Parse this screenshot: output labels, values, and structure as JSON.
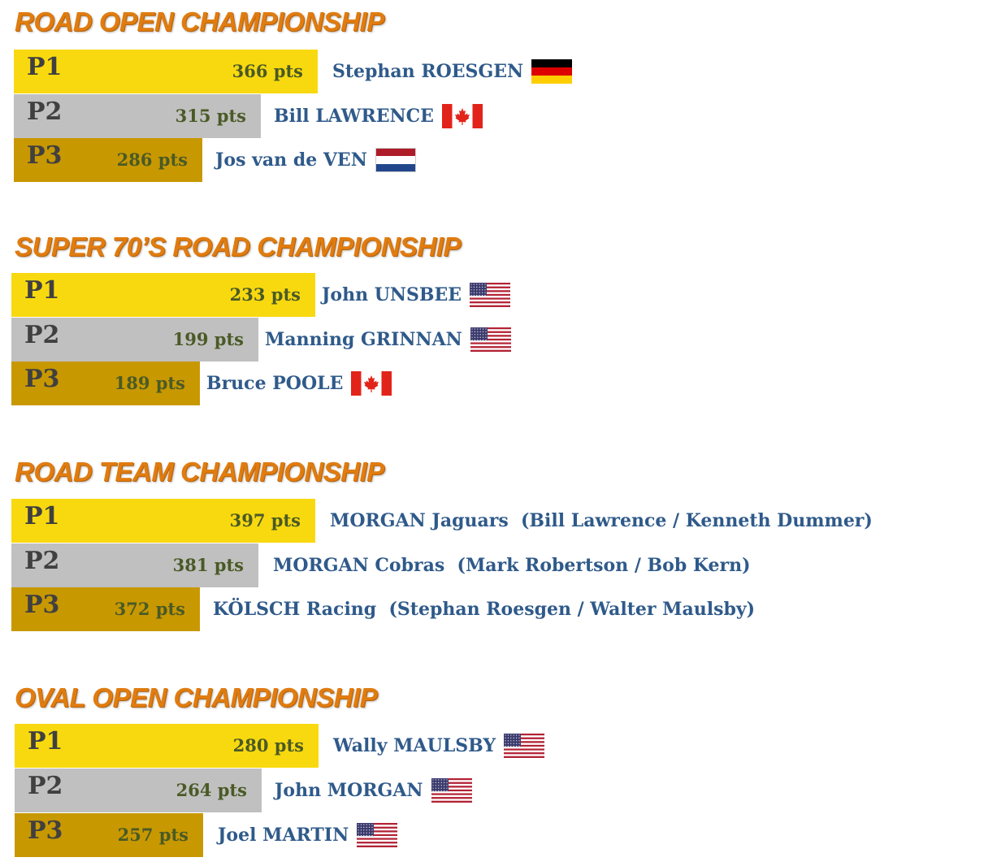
{
  "colors": {
    "title": "#e07c10",
    "p1": "#f8d90f",
    "p2": "#c0c0c0",
    "p3": "#c89800",
    "position_text": "#404040",
    "points_text": "#4a5a26",
    "name_text": "#2f5a8a"
  },
  "chart_data": [
    {
      "type": "bar",
      "title": "ROAD OPEN CHAMPIONSHIP",
      "categories": [
        "P1",
        "P2",
        "P3"
      ],
      "values": [
        366,
        315,
        286
      ],
      "value_labels": [
        "366 pts",
        "315 pts",
        "286 pts"
      ],
      "names": [
        "Stephan ROESGEN",
        "Bill LAWRENCE",
        "Jos van de VEN"
      ],
      "flags": [
        "germany-flag-icon",
        "canada-flag-icon",
        "netherlands-flag-icon"
      ]
    },
    {
      "type": "bar",
      "title": "SUPER 70’S ROAD CHAMPIONSHIP",
      "categories": [
        "P1",
        "P2",
        "P3"
      ],
      "values": [
        233,
        199,
        189
      ],
      "value_labels": [
        "233 pts",
        "199 pts",
        "189 pts"
      ],
      "names": [
        "John UNSBEE",
        "Manning GRINNAN",
        "Bruce POOLE"
      ],
      "flags": [
        "usa-flag-icon",
        "usa-flag-icon",
        "canada-flag-icon"
      ]
    },
    {
      "type": "bar",
      "title": "ROAD TEAM CHAMPIONSHIP",
      "categories": [
        "P1",
        "P2",
        "P3"
      ],
      "values": [
        397,
        381,
        372
      ],
      "value_labels": [
        "397 pts",
        "381 pts",
        "372 pts"
      ],
      "names": [
        "MORGAN Jaguars  (Bill Lawrence / Kenneth Dummer)",
        "MORGAN Cobras  (Mark Robertson / Bob Kern)",
        "KÖLSCH Racing  (Stephan Roesgen / Walter Maulsby)"
      ],
      "flags": [
        "",
        "",
        ""
      ]
    },
    {
      "type": "bar",
      "title": "OVAL OPEN CHAMPIONSHIP",
      "categories": [
        "P1",
        "P2",
        "P3"
      ],
      "values": [
        280,
        264,
        257
      ],
      "value_labels": [
        "280 pts",
        "264 pts",
        "257 pts"
      ],
      "names": [
        "Wally MAULSBY",
        "John MORGAN",
        "Joel MARTIN"
      ],
      "flags": [
        "usa-flag-icon",
        "usa-flag-icon",
        "usa-flag-icon"
      ]
    }
  ]
}
